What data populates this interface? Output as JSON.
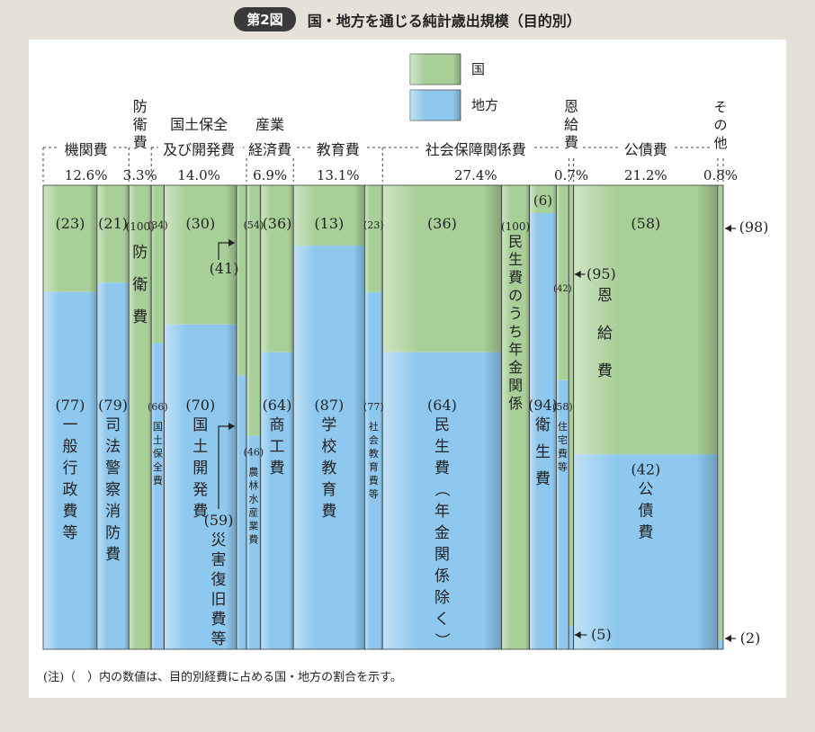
{
  "title": {
    "badge": "第2図",
    "text": "国・地方を通じる純計歳出規模（目的別）"
  },
  "legend": {
    "national": "国",
    "local": "地方"
  },
  "colors": {
    "national": "#a9cf98",
    "local": "#8ec8ee"
  },
  "note": "(注)（　）内の数値は、目的別経費に占める国・地方の割合を示す。",
  "chart_data": {
    "type": "stacked-bar (marimekko)",
    "unit": "%",
    "series": [
      {
        "name": "国"
      },
      {
        "name": "地方"
      }
    ],
    "groups": [
      {
        "name": "機関費",
        "share": "12.6%",
        "subcategories": [
          {
            "name": "一般行政費等",
            "national": 23,
            "local": 77
          },
          {
            "name": "司法警察消防費",
            "national": 21,
            "local": 79
          }
        ]
      },
      {
        "name": "防衛費",
        "share": "3.3%",
        "subcategories": [
          {
            "name": "防衛費",
            "national": 100,
            "local": 0
          }
        ]
      },
      {
        "name": "国土保全及び開発費",
        "share": "14.0%",
        "subcategories": [
          {
            "name": "国土保全費",
            "national": 34,
            "local": 66
          },
          {
            "name": "国土開発費",
            "national": 30,
            "local": 70
          },
          {
            "name": "災害復旧費等",
            "national": 41,
            "local": 59
          }
        ]
      },
      {
        "name": "産業経済費",
        "share": "6.9%",
        "subcategories": [
          {
            "name": "農林水産業費",
            "national": 54,
            "local": 46
          },
          {
            "name": "商工費",
            "national": 36,
            "local": 64
          }
        ]
      },
      {
        "name": "教育費",
        "share": "13.1%",
        "subcategories": [
          {
            "name": "学校教育費",
            "national": 13,
            "local": 87
          },
          {
            "name": "社会教育費等",
            "national": 23,
            "local": 77
          }
        ]
      },
      {
        "name": "社会保障関係費",
        "share": "27.4%",
        "subcategories": [
          {
            "name": "民生費（年金関係除く）",
            "national": 36,
            "local": 64
          },
          {
            "name": "民生費のうち年金関係",
            "national": 100,
            "local": 0
          },
          {
            "name": "衛生費",
            "national": 6,
            "local": 94
          },
          {
            "name": "住宅費等",
            "national": 42,
            "local": 58
          }
        ]
      },
      {
        "name": "恩給費",
        "share": "0.7%",
        "subcategories": [
          {
            "name": "恩給費",
            "national": 95,
            "local": 5
          }
        ]
      },
      {
        "name": "公債費",
        "share": "21.2%",
        "subcategories": [
          {
            "name": "公債費",
            "national": 58,
            "local": 42
          }
        ]
      },
      {
        "name": "その他",
        "share": "0.8%",
        "subcategories": [
          {
            "name": "その他",
            "national": 98,
            "local": 2
          }
        ]
      }
    ]
  }
}
